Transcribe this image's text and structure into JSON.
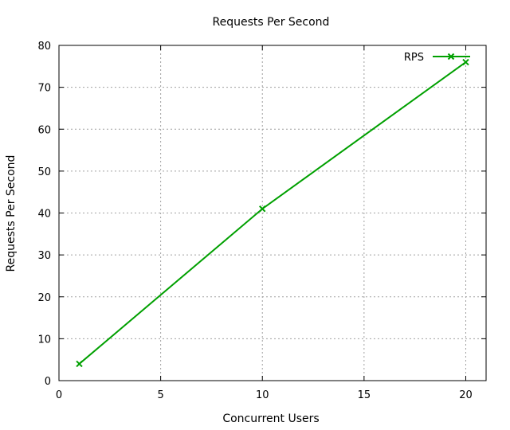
{
  "chart_data": {
    "type": "line",
    "title": "Requests Per Second",
    "xlabel": "Concurrent Users",
    "ylabel": "Requests Per Second",
    "xlim": [
      0,
      21
    ],
    "ylim": [
      0,
      80
    ],
    "xticks": [
      0,
      5,
      10,
      15,
      20
    ],
    "yticks": [
      0,
      10,
      20,
      30,
      40,
      50,
      60,
      70,
      80
    ],
    "grid": true,
    "legend_position": "top-right",
    "series": [
      {
        "name": "RPS",
        "color": "#00a000",
        "marker": "x",
        "x": [
          1,
          10,
          20
        ],
        "y": [
          4,
          41,
          76
        ]
      }
    ]
  }
}
